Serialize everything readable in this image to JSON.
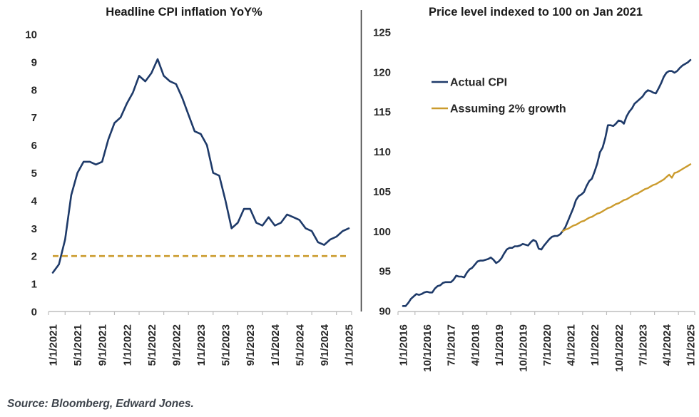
{
  "source_note": "Source: Bloomberg, Edward Jones.",
  "colors": {
    "navy": "#1e3a69",
    "gold": "#cb9b2d",
    "axis": "#bdbdbd",
    "dark_axis": "#3f3f3f",
    "text": "#262626"
  },
  "chart_data": [
    {
      "type": "line",
      "title": "Headline CPI inflation YoY%",
      "xlabel": "",
      "ylabel": "",
      "ylim": [
        0,
        10
      ],
      "yticks": [
        0,
        1,
        2,
        3,
        4,
        5,
        6,
        7,
        8,
        9,
        10
      ],
      "grid": false,
      "legend_position": "none",
      "x_start": "1/1/2021",
      "x_end": "1/1/2025",
      "x_frequency": "monthly",
      "xtick_labels": [
        "1/1/2021",
        "5/1/2021",
        "9/1/2021",
        "1/1/2022",
        "5/1/2022",
        "9/1/2022",
        "1/1/2023",
        "5/1/2023",
        "9/1/2023",
        "1/1/2024",
        "5/1/2024",
        "9/1/2024",
        "1/1/2025"
      ],
      "series": [
        {
          "name": "Headline CPI YoY%",
          "color": "navy",
          "dash": null,
          "width": 2.6,
          "x_span_frac": [
            0,
            1
          ],
          "values": [
            1.4,
            1.7,
            2.6,
            4.2,
            5.0,
            5.4,
            5.4,
            5.3,
            5.4,
            6.2,
            6.8,
            7.0,
            7.5,
            7.9,
            8.5,
            8.3,
            8.6,
            9.1,
            8.5,
            8.3,
            8.2,
            7.7,
            7.1,
            6.5,
            6.4,
            6.0,
            5.0,
            4.9,
            4.0,
            3.0,
            3.2,
            3.7,
            3.7,
            3.2,
            3.1,
            3.4,
            3.1,
            3.2,
            3.5,
            3.4,
            3.3,
            3.0,
            2.9,
            2.5,
            2.4,
            2.6,
            2.7,
            2.9,
            3.0
          ]
        },
        {
          "name": "2% reference",
          "color": "gold",
          "dash": "8,5",
          "width": 2.6,
          "x_span_frac": [
            0,
            1
          ],
          "values": [
            2,
            2
          ]
        }
      ]
    },
    {
      "type": "line",
      "title": "Price level indexed to 100 on Jan 2021",
      "xlabel": "",
      "ylabel": "",
      "ylim": [
        90,
        125
      ],
      "yticks": [
        90,
        95,
        100,
        105,
        110,
        115,
        120,
        125
      ],
      "grid": false,
      "legend_position": "upper-left-inside",
      "x_start": "1/1/2016",
      "x_end": "1/1/2025",
      "x_frequency": "monthly",
      "xtick_labels": [
        "1/1/2016",
        "10/1/2016",
        "7/1/2017",
        "4/1/2018",
        "1/1/2019",
        "10/1/2019",
        "7/1/2020",
        "4/1/2021",
        "1/1/2022",
        "10/1/2022",
        "7/1/2023",
        "4/1/2024",
        "1/1/2025"
      ],
      "series": [
        {
          "name": "Actual CPI",
          "color": "navy",
          "dash": null,
          "width": 2.6,
          "x_span_frac": [
            0,
            1
          ],
          "values": [
            90.6,
            90.6,
            91.0,
            91.5,
            91.8,
            92.1,
            92.0,
            92.1,
            92.3,
            92.4,
            92.3,
            92.3,
            92.8,
            93.1,
            93.2,
            93.5,
            93.6,
            93.6,
            93.6,
            93.9,
            94.4,
            94.3,
            94.3,
            94.2,
            94.8,
            95.2,
            95.4,
            95.8,
            96.2,
            96.3,
            96.3,
            96.4,
            96.5,
            96.7,
            96.4,
            96.0,
            96.2,
            96.6,
            97.2,
            97.7,
            97.9,
            97.9,
            98.1,
            98.1,
            98.2,
            98.4,
            98.3,
            98.2,
            98.6,
            98.9,
            98.7,
            97.8,
            97.7,
            98.2,
            98.6,
            99.0,
            99.3,
            99.4,
            99.4,
            99.6,
            100.0,
            100.5,
            101.3,
            102.1,
            102.9,
            103.9,
            104.4,
            104.6,
            104.9,
            105.7,
            106.3,
            106.6,
            107.5,
            108.5,
            109.9,
            110.5,
            111.7,
            113.3,
            113.3,
            113.2,
            113.5,
            113.9,
            113.8,
            113.5,
            114.4,
            115.0,
            115.4,
            116.0,
            116.3,
            116.6,
            116.9,
            117.4,
            117.7,
            117.6,
            117.4,
            117.3,
            117.9,
            118.6,
            119.4,
            119.9,
            120.1,
            120.1,
            119.9,
            120.1,
            120.5,
            120.8,
            121.0,
            121.2,
            121.5
          ]
        },
        {
          "name": "Assuming 2% growth",
          "color": "gold",
          "dash": null,
          "width": 2.4,
          "x_span_frac": [
            0.5556,
            1
          ],
          "values": [
            100.0,
            100.2,
            100.3,
            100.5,
            100.7,
            100.8,
            101.0,
            101.2,
            101.3,
            101.5,
            101.7,
            101.8,
            102.0,
            102.2,
            102.3,
            102.5,
            102.7,
            102.9,
            103.0,
            103.2,
            103.4,
            103.5,
            103.7,
            103.9,
            104.0,
            104.2,
            104.4,
            104.6,
            104.7,
            104.9,
            105.1,
            105.3,
            105.4,
            105.6,
            105.8,
            105.9,
            106.1,
            106.3,
            106.5,
            106.8,
            107.1,
            106.7,
            107.3,
            107.4,
            107.6,
            107.8,
            108.0,
            108.2,
            108.4
          ]
        }
      ]
    }
  ]
}
